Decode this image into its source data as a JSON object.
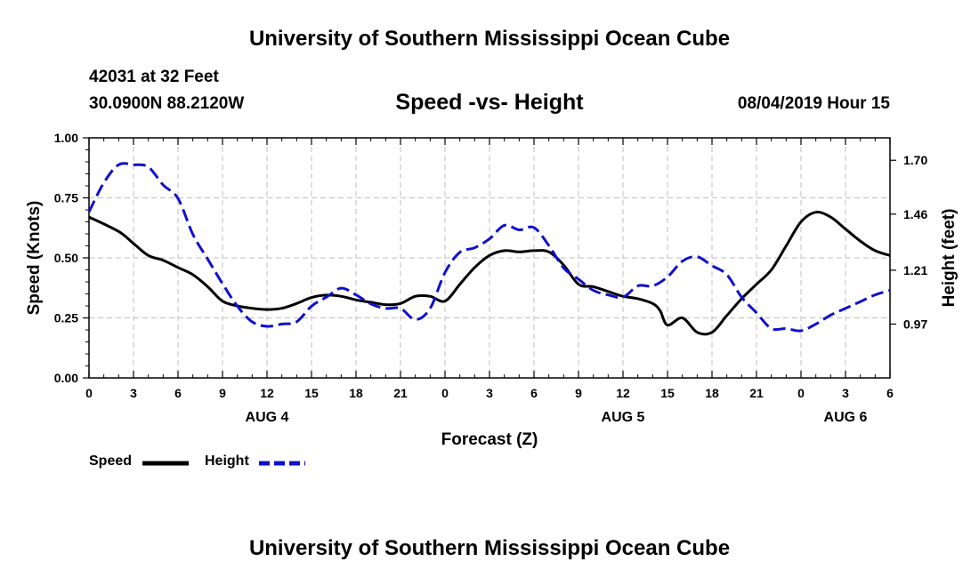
{
  "page_title_top": "University of Southern Mississippi Ocean Cube",
  "page_title_bottom": "University of Southern Mississippi Ocean Cube",
  "station": {
    "name": "42031 at 32 Feet",
    "location": "30.0900N 88.2120W",
    "timestamp": "08/04/2019 Hour 15"
  },
  "colors": {
    "speed": "#000000",
    "height": "#1010cc",
    "grid": "#bfbfbf"
  },
  "chart_data": {
    "type": "line",
    "title": "Speed -vs- Height",
    "xlabel": "Forecast (Z)",
    "ylabel_left": "Speed (Knots)",
    "ylabel_right": "Height (feet)",
    "x_unit": "hours from AUG 4 00Z",
    "xlim": [
      -3,
      51
    ],
    "ylim_left": [
      0,
      1.0
    ],
    "ylim_right": [
      0.73,
      1.8
    ],
    "x_ticks": [
      {
        "x": -3,
        "label": "0"
      },
      {
        "x": 0,
        "label": "3"
      },
      {
        "x": 3,
        "label": "6"
      },
      {
        "x": 6,
        "label": "9"
      },
      {
        "x": 9,
        "label": "12"
      },
      {
        "x": 12,
        "label": "15"
      },
      {
        "x": 15,
        "label": "18"
      },
      {
        "x": 18,
        "label": "21"
      },
      {
        "x": 21,
        "label": "0"
      },
      {
        "x": 24,
        "label": "3"
      },
      {
        "x": 27,
        "label": "6"
      },
      {
        "x": 30,
        "label": "9"
      },
      {
        "x": 33,
        "label": "12"
      },
      {
        "x": 36,
        "label": "15"
      },
      {
        "x": 39,
        "label": "18"
      },
      {
        "x": 42,
        "label": "21"
      },
      {
        "x": 45,
        "label": "0"
      },
      {
        "x": 48,
        "label": "3"
      },
      {
        "x": 51,
        "label": "6"
      }
    ],
    "date_labels": [
      {
        "x": 9,
        "label": "AUG 4"
      },
      {
        "x": 33,
        "label": "AUG 5"
      },
      {
        "x": 48,
        "label": "AUG 6"
      }
    ],
    "y_ticks_left": [
      {
        "v": 0.0,
        "label": "0.00"
      },
      {
        "v": 0.25,
        "label": "0.25"
      },
      {
        "v": 0.5,
        "label": "0.50"
      },
      {
        "v": 0.75,
        "label": "0.75"
      },
      {
        "v": 1.0,
        "label": "1.00"
      }
    ],
    "y_ticks_right": [
      {
        "v": 0.97,
        "label": "0.97"
      },
      {
        "v": 1.21,
        "label": "1.21"
      },
      {
        "v": 1.46,
        "label": "1.46"
      },
      {
        "v": 1.7,
        "label": "1.70"
      }
    ],
    "series": [
      {
        "name": "Speed",
        "axis": "left",
        "style": "solid",
        "points": [
          [
            -3,
            0.67
          ],
          [
            -1,
            0.61
          ],
          [
            0,
            0.56
          ],
          [
            1,
            0.51
          ],
          [
            2,
            0.49
          ],
          [
            3,
            0.46
          ],
          [
            4,
            0.43
          ],
          [
            5,
            0.38
          ],
          [
            6,
            0.32
          ],
          [
            7,
            0.3
          ],
          [
            8,
            0.29
          ],
          [
            9,
            0.285
          ],
          [
            10,
            0.29
          ],
          [
            11,
            0.31
          ],
          [
            12,
            0.335
          ],
          [
            13,
            0.345
          ],
          [
            14,
            0.34
          ],
          [
            15,
            0.325
          ],
          [
            16,
            0.315
          ],
          [
            17,
            0.305
          ],
          [
            18,
            0.31
          ],
          [
            19,
            0.34
          ],
          [
            20,
            0.34
          ],
          [
            21,
            0.32
          ],
          [
            22,
            0.39
          ],
          [
            23,
            0.46
          ],
          [
            24,
            0.51
          ],
          [
            25,
            0.53
          ],
          [
            26,
            0.525
          ],
          [
            27,
            0.53
          ],
          [
            28,
            0.525
          ],
          [
            29,
            0.47
          ],
          [
            30,
            0.39
          ],
          [
            31,
            0.38
          ],
          [
            32,
            0.36
          ],
          [
            33,
            0.34
          ],
          [
            34,
            0.33
          ],
          [
            35,
            0.31
          ],
          [
            35.5,
            0.28
          ],
          [
            36,
            0.22
          ],
          [
            37,
            0.25
          ],
          [
            38,
            0.19
          ],
          [
            39,
            0.19
          ],
          [
            40,
            0.26
          ],
          [
            41,
            0.33
          ],
          [
            42,
            0.39
          ],
          [
            43,
            0.45
          ],
          [
            44,
            0.55
          ],
          [
            45,
            0.65
          ],
          [
            46,
            0.69
          ],
          [
            47,
            0.67
          ],
          [
            48,
            0.62
          ],
          [
            49,
            0.57
          ],
          [
            50,
            0.53
          ],
          [
            51,
            0.51
          ]
        ]
      },
      {
        "name": "Height",
        "axis": "right",
        "style": "dashed",
        "points": [
          [
            -3,
            1.47
          ],
          [
            -2,
            1.6
          ],
          [
            -1,
            1.68
          ],
          [
            0,
            1.68
          ],
          [
            1,
            1.67
          ],
          [
            2,
            1.59
          ],
          [
            3,
            1.53
          ],
          [
            4,
            1.37
          ],
          [
            5,
            1.26
          ],
          [
            6,
            1.15
          ],
          [
            7,
            1.05
          ],
          [
            8,
            0.98
          ],
          [
            9,
            0.96
          ],
          [
            10,
            0.97
          ],
          [
            11,
            0.98
          ],
          [
            12,
            1.05
          ],
          [
            13,
            1.09
          ],
          [
            14,
            1.13
          ],
          [
            15,
            1.1
          ],
          [
            16,
            1.06
          ],
          [
            17,
            1.04
          ],
          [
            18,
            1.04
          ],
          [
            19,
            0.99
          ],
          [
            20,
            1.04
          ],
          [
            21,
            1.2
          ],
          [
            22,
            1.29
          ],
          [
            23,
            1.31
          ],
          [
            24,
            1.35
          ],
          [
            25,
            1.41
          ],
          [
            26,
            1.39
          ],
          [
            27,
            1.4
          ],
          [
            28,
            1.32
          ],
          [
            29,
            1.22
          ],
          [
            30,
            1.17
          ],
          [
            31,
            1.12
          ],
          [
            32,
            1.1
          ],
          [
            33,
            1.09
          ],
          [
            34,
            1.14
          ],
          [
            35,
            1.14
          ],
          [
            36,
            1.18
          ],
          [
            37,
            1.25
          ],
          [
            38,
            1.27
          ],
          [
            39,
            1.23
          ],
          [
            40,
            1.19
          ],
          [
            41,
            1.09
          ],
          [
            42,
            1.02
          ],
          [
            43,
            0.95
          ],
          [
            44,
            0.95
          ],
          [
            45,
            0.94
          ],
          [
            46,
            0.97
          ],
          [
            47,
            1.01
          ],
          [
            48,
            1.04
          ],
          [
            49,
            1.07
          ],
          [
            50,
            1.1
          ],
          [
            51,
            1.12
          ]
        ]
      }
    ],
    "legend": [
      {
        "name": "Speed",
        "style": "solid"
      },
      {
        "name": "Height",
        "style": "dashed"
      }
    ],
    "legend_position": "bottom-left"
  }
}
